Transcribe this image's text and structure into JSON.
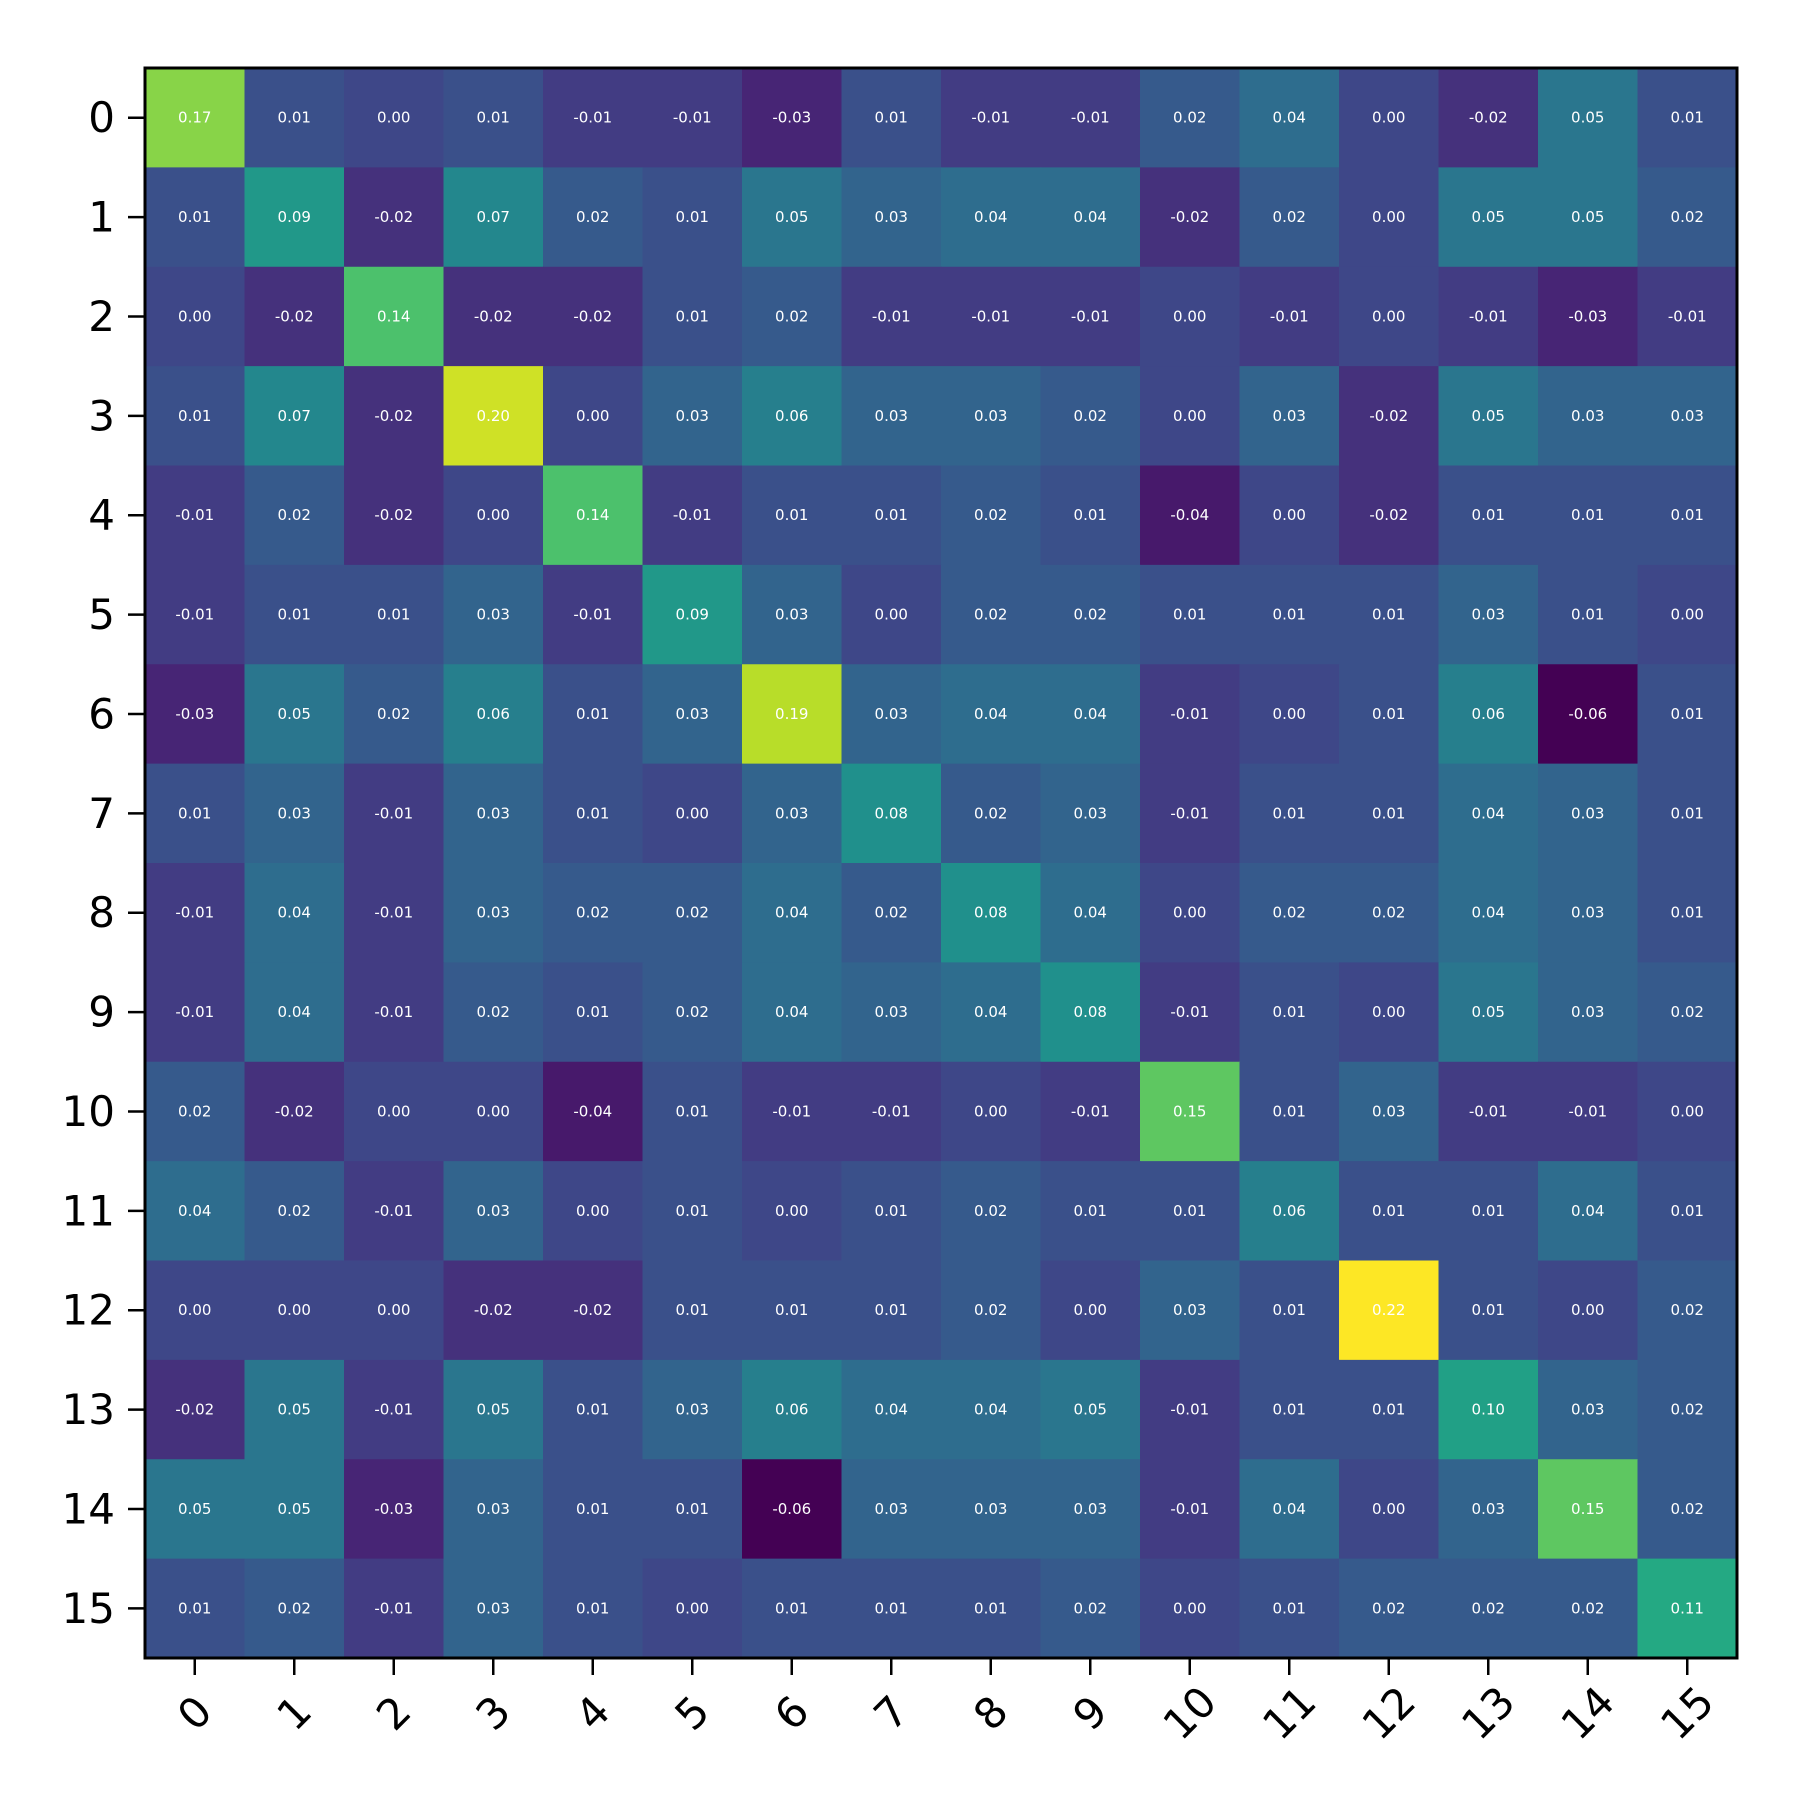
{
  "chart_data": {
    "type": "heatmap",
    "title": "",
    "xlabel": "",
    "ylabel": "",
    "colormap": "viridis",
    "value_range": [
      -0.06,
      0.22
    ],
    "grid": false,
    "legend": "none",
    "x_categories": [
      "0",
      "1",
      "2",
      "3",
      "4",
      "5",
      "6",
      "7",
      "8",
      "9",
      "10",
      "11",
      "12",
      "13",
      "14",
      "15"
    ],
    "y_categories": [
      "0",
      "1",
      "2",
      "3",
      "4",
      "5",
      "6",
      "7",
      "8",
      "9",
      "10",
      "11",
      "12",
      "13",
      "14",
      "15"
    ],
    "values": [
      [
        0.17,
        0.01,
        -0.0,
        0.01,
        -0.01,
        -0.01,
        -0.03,
        0.01,
        -0.01,
        -0.01,
        0.02,
        0.04,
        0.0,
        -0.02,
        0.05,
        0.01
      ],
      [
        0.01,
        0.09,
        -0.02,
        0.07,
        0.02,
        0.01,
        0.05,
        0.03,
        0.04,
        0.04,
        -0.02,
        0.02,
        -0.0,
        0.05,
        0.05,
        0.02
      ],
      [
        -0.0,
        -0.02,
        0.14,
        -0.02,
        -0.02,
        0.01,
        0.02,
        -0.01,
        -0.01,
        -0.01,
        0.0,
        -0.01,
        0.0,
        -0.01,
        -0.03,
        -0.01
      ],
      [
        0.01,
        0.07,
        -0.02,
        0.2,
        0.0,
        0.03,
        0.06,
        0.03,
        0.03,
        0.02,
        0.0,
        0.03,
        -0.02,
        0.05,
        0.03,
        0.03
      ],
      [
        -0.01,
        0.02,
        -0.02,
        0.0,
        0.14,
        -0.01,
        0.01,
        0.01,
        0.02,
        0.01,
        -0.04,
        -0.0,
        -0.02,
        0.01,
        0.01,
        0.01
      ],
      [
        -0.01,
        0.01,
        0.01,
        0.03,
        -0.01,
        0.09,
        0.03,
        0.0,
        0.02,
        0.02,
        0.01,
        0.01,
        0.01,
        0.03,
        0.01,
        0.0
      ],
      [
        -0.03,
        0.05,
        0.02,
        0.06,
        0.01,
        0.03,
        0.19,
        0.03,
        0.04,
        0.04,
        -0.01,
        -0.0,
        0.01,
        0.06,
        -0.06,
        0.01
      ],
      [
        0.01,
        0.03,
        -0.01,
        0.03,
        0.01,
        0.0,
        0.03,
        0.08,
        0.02,
        0.03,
        -0.01,
        0.01,
        0.01,
        0.04,
        0.03,
        0.01
      ],
      [
        -0.01,
        0.04,
        -0.01,
        0.03,
        0.02,
        0.02,
        0.04,
        0.02,
        0.08,
        0.04,
        -0.0,
        0.02,
        0.02,
        0.04,
        0.03,
        0.01
      ],
      [
        -0.01,
        0.04,
        -0.01,
        0.02,
        0.01,
        0.02,
        0.04,
        0.03,
        0.04,
        0.08,
        -0.01,
        0.01,
        -0.0,
        0.05,
        0.03,
        0.02
      ],
      [
        0.02,
        -0.02,
        0.0,
        0.0,
        -0.04,
        0.01,
        -0.01,
        -0.01,
        -0.0,
        -0.01,
        0.15,
        0.01,
        0.03,
        -0.01,
        -0.01,
        -0.0
      ],
      [
        0.04,
        0.02,
        -0.01,
        0.03,
        -0.0,
        0.01,
        -0.0,
        0.01,
        0.02,
        0.01,
        0.01,
        0.06,
        0.01,
        0.01,
        0.04,
        0.01
      ],
      [
        0.0,
        -0.0,
        0.0,
        -0.02,
        -0.02,
        0.01,
        0.01,
        0.01,
        0.02,
        -0.0,
        0.03,
        0.01,
        0.22,
        0.01,
        0.0,
        0.02
      ],
      [
        -0.02,
        0.05,
        -0.01,
        0.05,
        0.01,
        0.03,
        0.06,
        0.04,
        0.04,
        0.05,
        -0.01,
        0.01,
        0.01,
        0.1,
        0.03,
        0.02
      ],
      [
        0.05,
        0.05,
        -0.03,
        0.03,
        0.01,
        0.01,
        -0.06,
        0.03,
        0.03,
        0.03,
        -0.01,
        0.04,
        0.0,
        0.03,
        0.15,
        0.02
      ],
      [
        0.01,
        0.02,
        -0.01,
        0.03,
        0.01,
        0.0,
        0.01,
        0.01,
        0.01,
        0.02,
        -0.0,
        0.01,
        0.02,
        0.02,
        0.02,
        0.11
      ]
    ]
  }
}
